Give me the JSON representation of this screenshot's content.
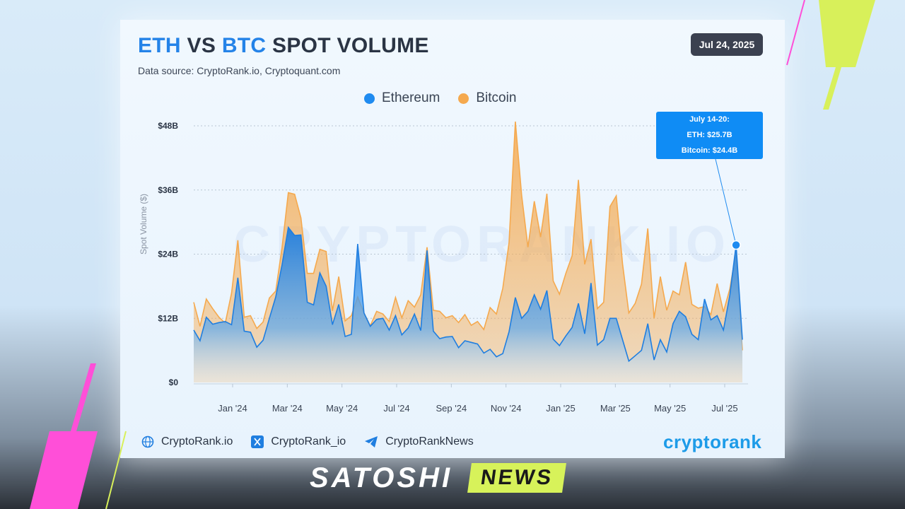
{
  "header": {
    "title_eth": "ETH",
    "title_vs": "VS",
    "title_btc": "BTC",
    "title_rest": "SPOT VOLUME",
    "subtitle": "Data source: CryptoRank.io, Cryptoquant.com",
    "date": "Jul 24, 2025"
  },
  "legend": [
    {
      "label": "Ethereum",
      "color": "#1f8bf0"
    },
    {
      "label": "Bitcoin",
      "color": "#f5a94e"
    }
  ],
  "tooltip": {
    "line1": "July 14-20:",
    "line2": "ETH: $25.7B",
    "line3": "Bitcoin: $24.4B"
  },
  "watermark": "CRYPTORANK.IO",
  "footer": {
    "site": "CryptoRank.io",
    "x": "CryptoRank_io",
    "telegram": "CryptoRankNews",
    "brand": "cryptorank"
  },
  "banner": {
    "satoshi": "SATOSHI",
    "news": "NEWS"
  },
  "chart_data": {
    "type": "area",
    "ylabel": "Spot Volume ($)",
    "ylim": [
      0,
      48
    ],
    "yticks": [
      "$0",
      "$12B",
      "$24B",
      "$36B",
      "$48B"
    ],
    "xticks": [
      "Jan '24",
      "Mar '24",
      "May '24",
      "Jul '24",
      "Sep '24",
      "Nov '24",
      "Jan '25",
      "Mar '25",
      "May '25",
      "Jul '25"
    ],
    "grid": true,
    "legend_position": "top-center",
    "series": [
      {
        "name": "Ethereum",
        "color": "#1f8bf0",
        "values": [
          9.8,
          7.8,
          12.2,
          10.9,
          11.2,
          11.4,
          10.8,
          19.6,
          9.6,
          9.4,
          6.6,
          7.9,
          12.0,
          16.0,
          22.0,
          29.0,
          27.5,
          27.6,
          15.0,
          14.5,
          20.5,
          18.0,
          10.8,
          14.6,
          8.6,
          9.0,
          25.9,
          13.0,
          10.5,
          11.8,
          12.0,
          9.8,
          12.5,
          8.9,
          10.2,
          12.8,
          9.7,
          24.7,
          9.6,
          8.2,
          8.5,
          8.6,
          6.5,
          7.8,
          7.5,
          7.2,
          5.5,
          6.2,
          4.8,
          5.4,
          9.5,
          15.9,
          12.0,
          13.3,
          16.4,
          13.7,
          17.2,
          8.1,
          6.9,
          8.7,
          10.3,
          14.8,
          9.1,
          18.6,
          7.0,
          8.0,
          12.0,
          12.0,
          8.0,
          4.0,
          5.0,
          6.0,
          11.0,
          4.2,
          8.0,
          5.7,
          11.0,
          13.3,
          12.3,
          9.0,
          8.0,
          15.6,
          11.7,
          12.5,
          9.8,
          16.3,
          25.7,
          8.0
        ]
      },
      {
        "name": "Bitcoin",
        "color": "#f5a94e",
        "values": [
          15.0,
          10.5,
          15.6,
          13.8,
          12.2,
          11.1,
          16.7,
          26.6,
          12.2,
          12.5,
          10.1,
          11.3,
          15.8,
          17.1,
          25.2,
          35.5,
          35.2,
          30.8,
          20.4,
          20.4,
          24.9,
          24.5,
          13.4,
          19.8,
          11.5,
          12.5,
          16.0,
          13.0,
          10.6,
          13.3,
          12.8,
          11.4,
          15.9,
          12.1,
          15.3,
          14.1,
          16.4,
          25.3,
          13.5,
          13.3,
          12.1,
          12.5,
          11.2,
          12.7,
          10.7,
          11.4,
          9.9,
          14.0,
          12.8,
          17.6,
          26.2,
          48.8,
          35.0,
          25.3,
          33.9,
          27.2,
          35.3,
          19.0,
          16.5,
          20.4,
          23.7,
          37.9,
          22.1,
          26.8,
          13.8,
          15.0,
          32.9,
          34.9,
          22.2,
          13.0,
          14.8,
          18.4,
          28.8,
          12.0,
          19.8,
          13.5,
          17.1,
          16.4,
          22.5,
          14.6,
          13.9,
          14.2,
          12.7,
          18.5,
          13.2,
          17.5,
          24.4,
          6.0
        ]
      }
    ],
    "annotation": {
      "x_index": 86,
      "text": "July 14-20: ETH: $25.7B, Bitcoin: $24.4B"
    }
  }
}
